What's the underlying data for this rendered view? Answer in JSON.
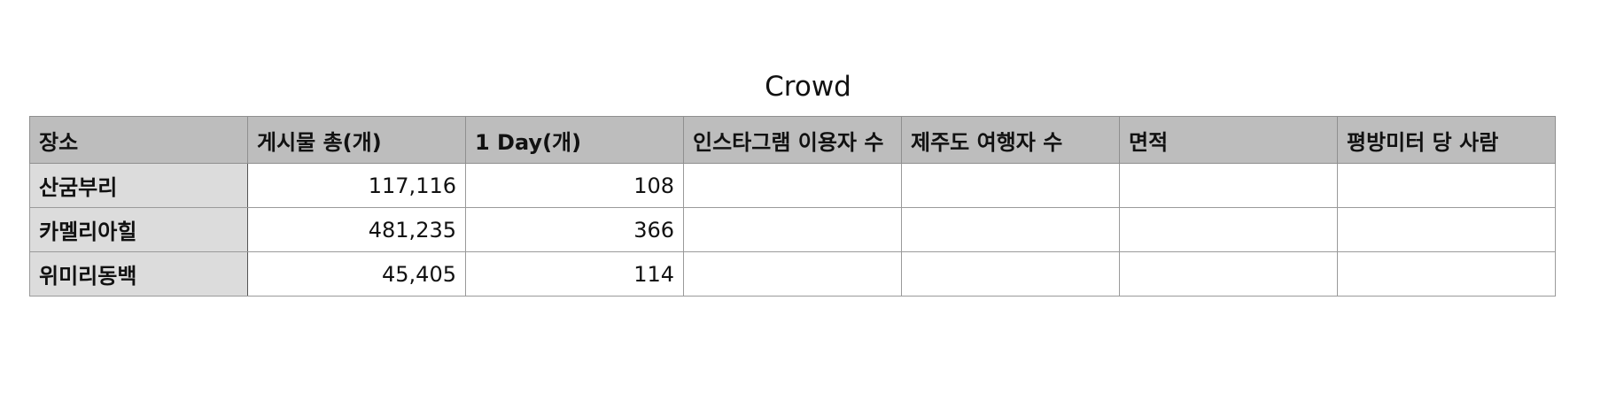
{
  "title": "Crowd",
  "table": {
    "headers": [
      "장소",
      "게시물 총(개)",
      "1 Day(개)",
      "인스타그램 이용자 수",
      "제주도 여행자 수",
      "면적",
      "평방미터 당 사람"
    ],
    "rows": [
      {
        "place": "산굼부리",
        "posts_total": "117,116",
        "per_day": "108",
        "instagram_users": "",
        "jeju_travelers": "",
        "area": "",
        "people_per_sqm": ""
      },
      {
        "place": "카멜리아힐",
        "posts_total": "481,235",
        "per_day": "366",
        "instagram_users": "",
        "jeju_travelers": "",
        "area": "",
        "people_per_sqm": ""
      },
      {
        "place": "위미리동백",
        "posts_total": "45,405",
        "per_day": "114",
        "instagram_users": "",
        "jeju_travelers": "",
        "area": "",
        "people_per_sqm": ""
      }
    ]
  }
}
